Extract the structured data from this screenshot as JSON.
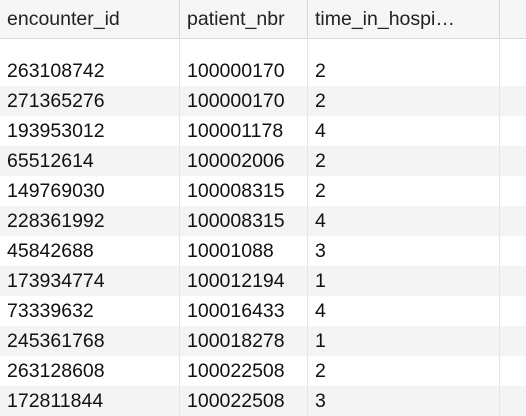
{
  "table": {
    "columns": [
      "encounter_id",
      "patient_nbr",
      "time_in_hospi…"
    ],
    "rows": [
      [
        "263108742",
        "100000170",
        "2"
      ],
      [
        "271365276",
        "100000170",
        "2"
      ],
      [
        "193953012",
        "100001178",
        "4"
      ],
      [
        "65512614",
        "100002006",
        "2"
      ],
      [
        "149769030",
        "100008315",
        "2"
      ],
      [
        "228361992",
        "100008315",
        "4"
      ],
      [
        "45842688",
        "10001088",
        "3"
      ],
      [
        "173934774",
        "100012194",
        "1"
      ],
      [
        "73339632",
        "100016433",
        "4"
      ],
      [
        "245361768",
        "100018278",
        "1"
      ],
      [
        "263128608",
        "100022508",
        "2"
      ],
      [
        "172811844",
        "100022508",
        "3"
      ]
    ]
  }
}
